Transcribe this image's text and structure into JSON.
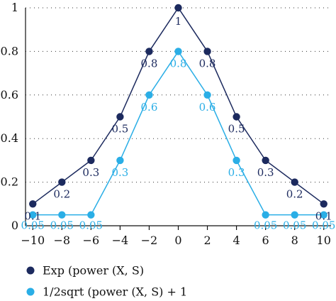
{
  "chart_data": {
    "type": "line",
    "title": "",
    "xlabel": "",
    "ylabel": "",
    "x": [
      -10,
      -8,
      -6,
      -4,
      -2,
      0,
      2,
      4,
      6,
      8,
      10
    ],
    "xlim": [
      -10.5,
      10.5
    ],
    "ylim": [
      0,
      1
    ],
    "xticks": [
      "-10",
      "-8",
      "-6",
      "-4",
      "-2",
      "0",
      "2",
      "4",
      "6",
      "8",
      "10"
    ],
    "yticks": [
      "0",
      "0.2",
      "0.4",
      "0.6",
      "0.8",
      "1"
    ],
    "grid": "horizontal dotted",
    "legend_position": "bottom-left",
    "series": [
      {
        "name": "Exp (power (X, S)",
        "color": "#1c2a5e",
        "values": [
          0.1,
          0.2,
          0.3,
          0.5,
          0.8,
          1,
          0.8,
          0.5,
          0.3,
          0.2,
          0.1
        ],
        "labels": [
          "0.1",
          "0.2",
          "0.3",
          "0.5",
          "0.8",
          "1",
          "0.8",
          "0.5",
          "0.3",
          "0.2",
          "0.1"
        ]
      },
      {
        "name": "1/2sqrt (power (X, S) + 1",
        "color": "#2aaee6",
        "values": [
          0.05,
          0.05,
          0.05,
          0.3,
          0.6,
          0.8,
          0.6,
          0.3,
          0.05,
          0.05,
          0.05
        ],
        "labels": [
          "0.05",
          "0.05",
          "0.05",
          "0.3",
          "0.6",
          "0.8",
          "0.6",
          "0.3",
          "0.05",
          "0.05",
          "0.05"
        ]
      }
    ]
  }
}
